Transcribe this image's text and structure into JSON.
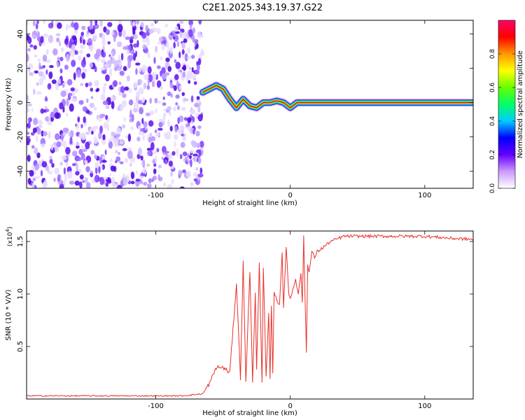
{
  "title": "C2E1.2025.343.19.37.G22",
  "chart_data": [
    {
      "type": "heatmap",
      "xlabel": "Height of straight line (km)",
      "ylabel": "Frequency (Hz)",
      "xlim": [
        -196,
        136
      ],
      "ylim": [
        -50,
        48
      ],
      "xticks": [
        -100,
        0,
        100
      ],
      "xtick_labels": [
        "-100",
        "0",
        "100"
      ],
      "yticks": [
        -40,
        -20,
        0,
        20,
        40
      ],
      "ytick_labels": [
        "-40",
        "-20",
        "0",
        "20",
        "40"
      ],
      "noise_region_x": [
        -196,
        -65
      ],
      "ridge_x": [
        -65,
        -60,
        -55,
        -50,
        -45,
        -40,
        -35,
        -30,
        -25,
        -20,
        -15,
        -10,
        -5,
        0,
        5,
        10,
        20,
        40,
        80,
        136
      ],
      "ridge_y": [
        6,
        8,
        10,
        8,
        2,
        -3,
        2,
        -2,
        -3,
        0,
        0,
        1,
        0,
        -3,
        0,
        0,
        0,
        0,
        0,
        0
      ],
      "colorbar": {
        "label": "Normalized spectral amplitude",
        "range": [
          0,
          1
        ],
        "ticks": [
          0.0,
          0.2,
          0.4,
          0.6,
          0.8
        ],
        "tick_labels": [
          "0.0",
          "0.2",
          "0.4",
          "0.6",
          "0.8"
        ],
        "colors": [
          "#ffffff",
          "#cc99ff",
          "#6600ff",
          "#0000ff",
          "#00ccff",
          "#00ff66",
          "#66ff00",
          "#ffff00",
          "#ff9900",
          "#ff0000",
          "#ff0066"
        ]
      }
    },
    {
      "type": "line",
      "xlabel": "Height of straight line (km)",
      "ylabel": "SNR (10 * V/V)",
      "multiplier_base": "(x10",
      "multiplier_exp": "4",
      "multiplier_close": ")",
      "xlim": [
        -196,
        136
      ],
      "ylim": [
        0,
        16000
      ],
      "xticks": [
        -100,
        0,
        100
      ],
      "xtick_labels": [
        "-100",
        "0",
        "100"
      ],
      "yticks": [
        5000,
        10000,
        15000
      ],
      "ytick_labels": [
        "0.5",
        "1.0",
        "1.5"
      ],
      "color": "#e8302a",
      "series": [
        {
          "x": [
            -196,
            -150,
            -100,
            -80,
            -65,
            -60,
            -55,
            -50,
            -45,
            -40,
            -37,
            -35,
            -33,
            -31,
            -30,
            -28,
            -26,
            -25,
            -23,
            -21,
            -20,
            -18,
            -16,
            -15,
            -14,
            -13,
            -12,
            -10,
            -8,
            -6,
            -5,
            -3,
            -1,
            0,
            2,
            4,
            6,
            8,
            9,
            10,
            11,
            12,
            13,
            14,
            16,
            18,
            20,
            25,
            30,
            40,
            60,
            80,
            100,
            120,
            136
          ],
          "y": [
            300,
            300,
            300,
            300,
            500,
            1500,
            3000,
            3000,
            2500,
            11000,
            2000,
            13000,
            1500,
            9000,
            12000,
            1500,
            10000,
            3000,
            13000,
            1500,
            12500,
            2000,
            8000,
            2000,
            9000,
            2500,
            10000,
            9500,
            9000,
            14000,
            8500,
            14500,
            10000,
            9500,
            10500,
            11500,
            10000,
            12000,
            9000,
            15500,
            9500,
            4500,
            13000,
            12000,
            14000,
            13500,
            14000,
            14500,
            15000,
            15500,
            15500,
            15500,
            15500,
            15300,
            15200
          ]
        }
      ]
    }
  ]
}
